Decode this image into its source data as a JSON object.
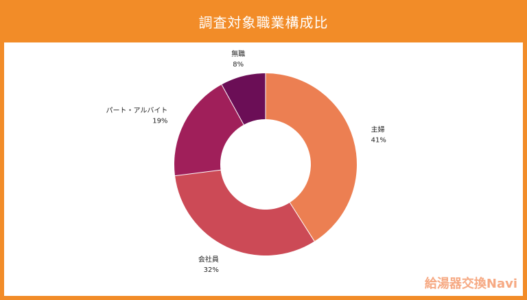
{
  "header": {
    "title": "調査対象職業構成比"
  },
  "brand": {
    "logo_text": "給湯器交換Navi"
  },
  "colors": {
    "frame": "#f28c28",
    "slices": [
      "#ec7f52",
      "#cc4a56",
      "#a01f5a",
      "#6b0e56"
    ]
  },
  "chart_data": {
    "type": "pie",
    "style": "donut",
    "title": "調査対象職業構成比",
    "categories": [
      "主婦",
      "会社員",
      "パート・アルバイト",
      "無職"
    ],
    "values": [
      41,
      32,
      19,
      8
    ],
    "labels": [
      "41%",
      "32%",
      "19%",
      "8%"
    ],
    "unit": "%",
    "start": "12 o'clock, clockwise"
  }
}
